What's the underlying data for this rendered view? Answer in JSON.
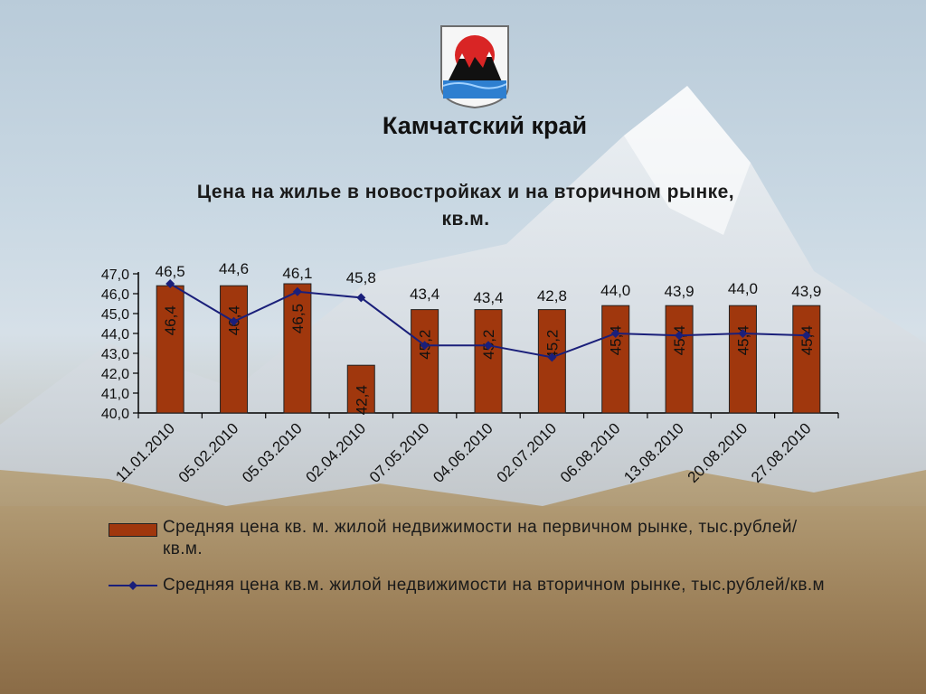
{
  "region_title": "Камчатский край",
  "chart_data": {
    "type": "bar+line",
    "title": "Цена на жилье в новостройках и на вторичном рынке, кв.м.",
    "categories": [
      "11.01.2010",
      "05.02.2010",
      "05.03.2010",
      "02.04.2010",
      "07.05.2010",
      "04.06.2010",
      "02.07.2010",
      "06.08.2010",
      "13.08.2010",
      "20.08.2010",
      "27.08.2010"
    ],
    "series": [
      {
        "name": "Средняя цена кв. м. жилой недвижимости на первичном рынке, тыс.рублей/кв.м.",
        "type": "bar",
        "values": [
          46.4,
          46.4,
          46.5,
          42.4,
          45.2,
          45.2,
          45.2,
          45.4,
          45.4,
          45.4,
          45.4
        ],
        "labels": [
          "46,4",
          "46,4",
          "46,5",
          "42,4",
          "45,2",
          "45,2",
          "45,2",
          "45,4",
          "45,4",
          "45,4",
          "45,4"
        ]
      },
      {
        "name": "Средняя цена кв.м. жилой недвижимости на вторичном рынке, тыс.рублей/кв.м",
        "type": "line",
        "values": [
          46.5,
          44.6,
          46.1,
          45.8,
          43.4,
          43.4,
          42.8,
          44.0,
          43.9,
          44.0,
          43.9
        ],
        "labels": [
          "46,5",
          "44,6",
          "46,1",
          "45,8",
          "43,4",
          "43,4",
          "42,8",
          "44,0",
          "43,9",
          "44,0",
          "43,9"
        ]
      }
    ],
    "ylim": [
      40.0,
      47.0
    ],
    "yticks": [
      "40,0",
      "41,0",
      "42,0",
      "43,0",
      "44,0",
      "45,0",
      "46,0",
      "47,0"
    ],
    "legend_position": "bottom",
    "grid": false,
    "colors": {
      "bar": "#a0370d",
      "line": "#1a1f7a",
      "axis": "#000000"
    }
  }
}
